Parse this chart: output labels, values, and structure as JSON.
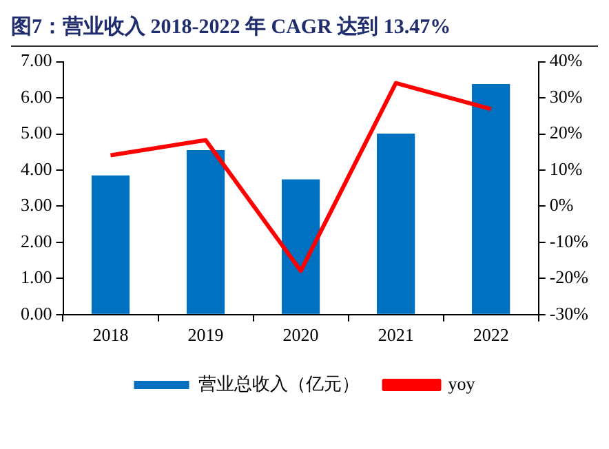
{
  "chart_data": {
    "type": "bar",
    "title": "图7：营业收入 2018-2022 年 CAGR 达到 13.47%",
    "categories": [
      "2018",
      "2019",
      "2020",
      "2021",
      "2022"
    ],
    "series": [
      {
        "name": "营业总收入（亿元）",
        "color": "#0070c0",
        "values": [
          3.85,
          4.55,
          3.74,
          5.01,
          6.38
        ]
      },
      {
        "name": "yoy",
        "type": "line",
        "axis": "y2",
        "color": "#ff0000",
        "marker": "none",
        "values": [
          14.1,
          18.3,
          -17.9,
          34.1,
          26.9
        ]
      }
    ],
    "ylim": [
      0,
      7
    ],
    "yticks": [
      {
        "value": 0,
        "label": "0.00"
      },
      {
        "value": 1,
        "label": "1.00"
      },
      {
        "value": 2,
        "label": "2.00"
      },
      {
        "value": 3,
        "label": "3.00"
      },
      {
        "value": 4,
        "label": "4.00"
      },
      {
        "value": 5,
        "label": "5.00"
      },
      {
        "value": 6,
        "label": "6.00"
      },
      {
        "value": 7,
        "label": "7.00"
      }
    ],
    "y2lim": [
      -30,
      40
    ],
    "y2ticks": [
      {
        "value": -30,
        "label": "-30%"
      },
      {
        "value": -20,
        "label": "-20%"
      },
      {
        "value": -10,
        "label": "-10%"
      },
      {
        "value": 0,
        "label": "0%"
      },
      {
        "value": 10,
        "label": "10%"
      },
      {
        "value": 20,
        "label": "20%"
      },
      {
        "value": 30,
        "label": "30%"
      },
      {
        "value": 40,
        "label": "40%"
      }
    ],
    "grid": false,
    "legend": "bottom"
  }
}
